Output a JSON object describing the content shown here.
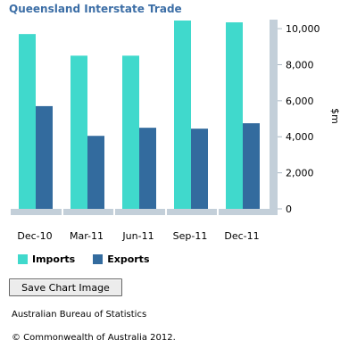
{
  "chart_data": {
    "type": "bar",
    "title": "Queensland Interstate Trade",
    "categories": [
      "Dec-10",
      "Mar-11",
      "Jun-11",
      "Sep-11",
      "Dec-11"
    ],
    "series": [
      {
        "name": "Imports",
        "values": [
          9700,
          8500,
          8500,
          10450,
          10350
        ],
        "color": "#40d9cc"
      },
      {
        "name": "Exports",
        "values": [
          5700,
          4050,
          4500,
          4450,
          4750
        ],
        "color": "#336b9e"
      }
    ],
    "ylabel": "$m",
    "ylim": [
      0,
      10500
    ],
    "yticks": [
      0,
      2000,
      4000,
      6000,
      8000,
      10000
    ],
    "ytick_labels": [
      "0",
      "2,000",
      "4,000",
      "6,000",
      "8,000",
      "10,000"
    ],
    "y_axis_position": "right",
    "legend_position": "bottom-left",
    "grid": false
  },
  "controls": {
    "save_label": "Save Chart Image"
  },
  "footer": {
    "source": "Australian Bureau of Statistics",
    "copyright": "© Commonwealth of Australia 2012."
  },
  "colors": {
    "title": "#3c6ea6",
    "axis_band": "#c3cfd9",
    "axis_line": "#a9b7c3"
  }
}
